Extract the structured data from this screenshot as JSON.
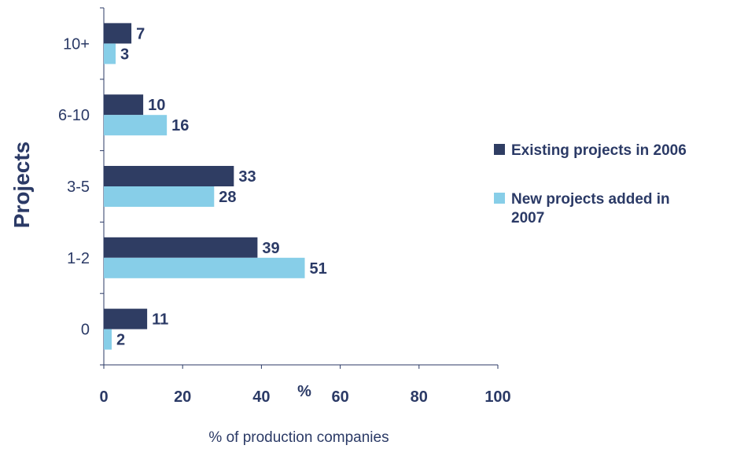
{
  "chart_data": {
    "type": "bar",
    "orientation": "horizontal",
    "categories": [
      "10+",
      "6-10",
      "3-5",
      "1-2",
      "0"
    ],
    "series": [
      {
        "name": "Existing projects in 2006",
        "color": "#2f3d63",
        "values": [
          7,
          10,
          33,
          39,
          11
        ]
      },
      {
        "name": "New projects added in 2007",
        "color": "#87cee8",
        "values": [
          3,
          16,
          28,
          51,
          2
        ]
      }
    ],
    "ylabel": "Projects",
    "xlabel": "% of production companies",
    "x_unit_label": "%",
    "xlim": [
      0,
      100
    ],
    "x_ticks": [
      0,
      20,
      40,
      60,
      80,
      100
    ],
    "grid": false,
    "legend_position": "right"
  }
}
